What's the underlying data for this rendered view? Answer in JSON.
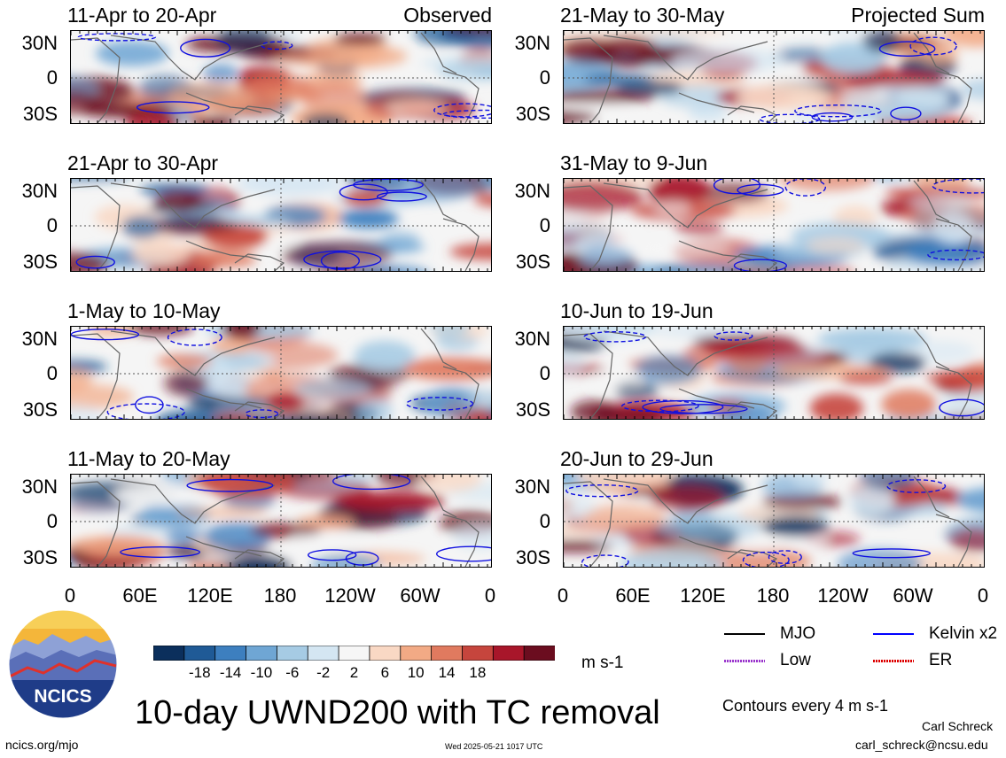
{
  "panels": [
    {
      "title": "11-Apr to 20-Apr",
      "tag": "Observed"
    },
    {
      "title": "21-May to 30-May",
      "tag": "Projected Sum"
    },
    {
      "title": "21-Apr to 30-Apr",
      "tag": ""
    },
    {
      "title": "31-May to 9-Jun",
      "tag": ""
    },
    {
      "title": "1-May to 10-May",
      "tag": ""
    },
    {
      "title": "10-Jun to 19-Jun",
      "tag": ""
    },
    {
      "title": "11-May to 20-May",
      "tag": ""
    },
    {
      "title": "20-Jun to 29-Jun",
      "tag": ""
    }
  ],
  "lat_labels": [
    "30N",
    "0",
    "30S"
  ],
  "lon_labels": [
    "0",
    "60E",
    "120E",
    "180",
    "120W",
    "60W",
    "0"
  ],
  "colorbar": {
    "labels": [
      "-18",
      "-14",
      "-10",
      "-6",
      "-2",
      "2",
      "6",
      "10",
      "14",
      "18"
    ],
    "colors": [
      "#0b2f5c",
      "#1f5a96",
      "#3d7fbf",
      "#6fa6d4",
      "#a6cbe4",
      "#d4e6f2",
      "#f6f6f6",
      "#f9d8c4",
      "#f2aa85",
      "#e07a5f",
      "#c6453d",
      "#a8162a",
      "#6b0d1f"
    ],
    "units": "m s-1"
  },
  "legend": [
    {
      "label": "MJO",
      "color": "#000000",
      "style": "solid"
    },
    {
      "label": "Kelvin x2",
      "color": "#0000ff",
      "style": "solid"
    },
    {
      "label": "Low",
      "color": "#9933cc",
      "style": "wavy"
    },
    {
      "label": "ER",
      "color": "#dd0000",
      "style": "wavy"
    }
  ],
  "logo_text": "NCICS",
  "main_title": "10-day UWND200 with TC removal",
  "contour_note": "Contours every 4 m s-1",
  "footer": {
    "left": "ncics.org/mjo",
    "center": "Wed 2025-05-21 1017 UTC",
    "author": "Carl Schreck",
    "email": "carl_schreck@ncsu.edu"
  }
}
